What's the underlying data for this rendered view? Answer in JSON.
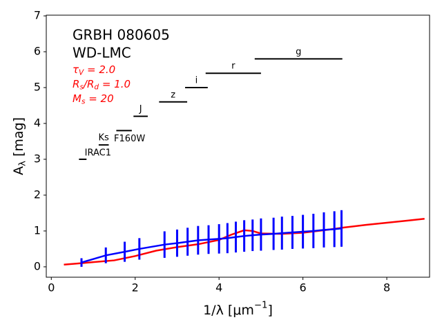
{
  "chart_data": {
    "type": "line",
    "annotations": [
      "GRBH 080605",
      "WD-LMC"
    ],
    "params": [
      [
        {
          "t": "τ"
        },
        {
          "sub": "V"
        },
        {
          "t": " = 2.0"
        }
      ],
      [
        {
          "t": "R"
        },
        {
          "sub": "s"
        },
        {
          "t": "/R"
        },
        {
          "sub": "d"
        },
        {
          "t": " = 1.0"
        }
      ],
      [
        {
          "t": "M"
        },
        {
          "sub": "s"
        },
        {
          "t": " = 20"
        }
      ]
    ],
    "xlabel": [
      {
        "t": "1/λ ["
      },
      {
        "t": "μm"
      },
      {
        "sup": "−1"
      },
      {
        "t": "]"
      }
    ],
    "ylabel": [
      {
        "t": "A"
      },
      {
        "sub": "λ"
      },
      {
        "t": " [mag]"
      }
    ],
    "xlim": [
      -0.12,
      9.02
    ],
    "ylim": [
      -0.29,
      7.02
    ],
    "xticks": [
      0,
      2,
      4,
      6,
      8
    ],
    "yticks": [
      0,
      1,
      2,
      3,
      4,
      5,
      6,
      7
    ],
    "filters": [
      {
        "label": "IRAC1",
        "x": [
          0.66,
          0.84
        ],
        "y": 3.0
      },
      {
        "label": "Ks",
        "x": [
          1.13,
          1.37
        ],
        "y": 3.4
      },
      {
        "label": "F160W",
        "x": [
          1.55,
          1.92
        ],
        "y": 3.8
      },
      {
        "label": "J",
        "x": [
          1.96,
          2.3
        ],
        "y": 4.2
      },
      {
        "label": "z",
        "x": [
          2.57,
          3.24
        ],
        "y": 4.6
      },
      {
        "label": "i",
        "x": [
          3.19,
          3.73
        ],
        "y": 5.0
      },
      {
        "label": "r",
        "x": [
          3.68,
          5.0
        ],
        "y": 5.4
      },
      {
        "label": "g",
        "x": [
          4.85,
          6.94
        ],
        "y": 5.8
      }
    ],
    "series": [
      {
        "color": "#ff0000",
        "x": [
          0.3,
          0.7,
          1.0,
          1.5,
          2.0,
          2.5,
          3.0,
          3.5,
          4.0,
          4.3,
          4.6,
          4.8,
          5.0,
          5.5,
          6.0,
          6.5,
          7.0,
          7.5,
          8.0,
          8.5,
          8.9
        ],
        "y": [
          0.06,
          0.1,
          0.13,
          0.18,
          0.3,
          0.45,
          0.55,
          0.63,
          0.75,
          0.9,
          1.02,
          1.0,
          0.93,
          0.92,
          0.95,
          1.02,
          1.1,
          1.17,
          1.23,
          1.29,
          1.34
        ]
      },
      {
        "color": "#0000ff",
        "x": [
          0.72,
          1.3,
          1.75,
          2.1,
          2.7,
          3.0,
          3.25,
          3.5,
          3.75,
          4.0,
          4.2,
          4.4,
          4.6,
          4.8,
          5.0,
          5.3,
          5.5,
          5.75,
          6.0,
          6.25,
          6.5,
          6.75,
          6.92
        ],
        "y": [
          0.12,
          0.32,
          0.42,
          0.5,
          0.62,
          0.66,
          0.7,
          0.74,
          0.76,
          0.78,
          0.8,
          0.83,
          0.86,
          0.88,
          0.9,
          0.92,
          0.94,
          0.96,
          0.98,
          1.0,
          1.03,
          1.05,
          1.07
        ],
        "err": [
          0.12,
          0.22,
          0.28,
          0.3,
          0.37,
          0.38,
          0.39,
          0.4,
          0.4,
          0.41,
          0.42,
          0.43,
          0.44,
          0.44,
          0.45,
          0.45,
          0.46,
          0.46,
          0.47,
          0.48,
          0.49,
          0.5,
          0.51
        ]
      }
    ]
  }
}
